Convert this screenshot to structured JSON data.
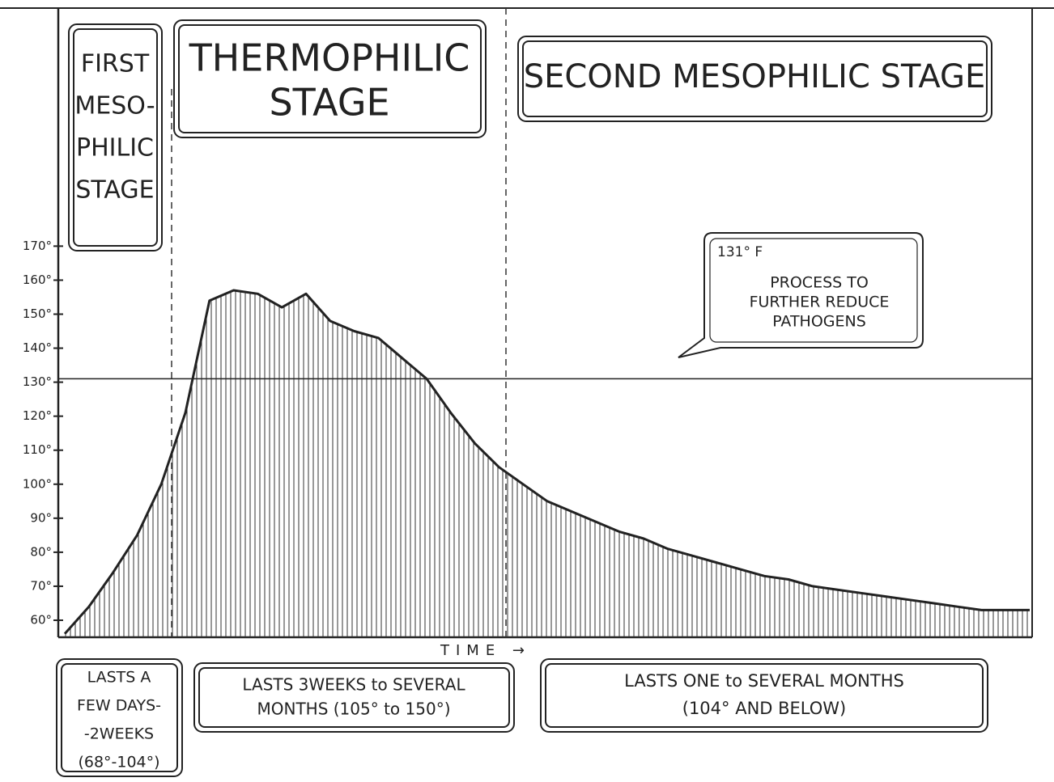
{
  "chart_data": {
    "type": "area",
    "x_label": "TIME →",
    "categories": [
      null,
      null,
      null,
      null,
      null,
      null,
      null,
      null,
      null,
      null,
      null,
      null,
      null,
      null,
      null,
      null,
      null,
      null,
      null,
      null,
      null,
      null,
      null,
      null,
      null,
      null,
      null,
      null,
      null,
      null,
      null,
      null,
      null,
      null,
      null,
      null,
      null,
      null,
      null,
      null,
      null
    ],
    "series": [
      {
        "name": null,
        "color": "#222222",
        "values": [
          56,
          64,
          74,
          85,
          100,
          121,
          154,
          157,
          156,
          152,
          156,
          148,
          145,
          143,
          137,
          131,
          121,
          112,
          105,
          100,
          95,
          92,
          89,
          86,
          84,
          81,
          79,
          77,
          75,
          73,
          72,
          70,
          69,
          68,
          67,
          66,
          65,
          64,
          63,
          63,
          63
        ]
      }
    ],
    "ylim": [
      55,
      240
    ],
    "yticks": [
      {
        "value": 60,
        "label": "60°"
      },
      {
        "value": 70,
        "label": "70°"
      },
      {
        "value": 80,
        "label": "80°"
      },
      {
        "value": 90,
        "label": "90°"
      },
      {
        "value": 100,
        "label": "100°"
      },
      {
        "value": 110,
        "label": "110°"
      },
      {
        "value": 120,
        "label": "120°"
      },
      {
        "value": 130,
        "label": "130°"
      },
      {
        "value": 140,
        "label": "140°"
      },
      {
        "value": 150,
        "label": "150°"
      },
      {
        "value": 160,
        "label": "160°"
      },
      {
        "value": 170,
        "label": "170°"
      }
    ],
    "reference_line": {
      "value": 131,
      "label": "131° F",
      "text": [
        "PROCESS TO",
        "FURTHER REDUCE",
        "PATHOGENS"
      ]
    },
    "stages": [
      {
        "title": [
          "FIRST",
          "MESO-",
          "PHILIC",
          "STAGE"
        ],
        "duration": [
          "LASTS A",
          "FEW DAYS-",
          "-2WEEKS",
          "(68°-104°)"
        ]
      },
      {
        "title": [
          "THERMOPHILIC",
          "STAGE"
        ],
        "duration": [
          "LASTS 3WEEKS to SEVERAL",
          "MONTHS (105° to 150°)"
        ]
      },
      {
        "title": [
          "SECOND MESOPHILIC STAGE"
        ],
        "duration": [
          "LASTS ONE to SEVERAL MONTHS",
          "(104° AND BELOW)"
        ]
      }
    ]
  }
}
